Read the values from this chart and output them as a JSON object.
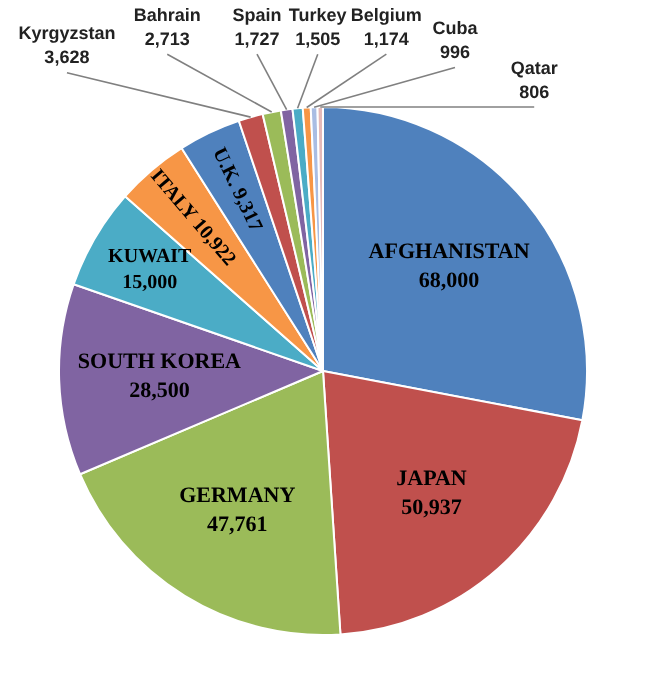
{
  "chart_data": {
    "type": "pie",
    "categories": [
      "AFGHANISTAN",
      "JAPAN",
      "GERMANY",
      "SOUTH KOREA",
      "KUWAIT",
      "ITALY",
      "U.K.",
      "Kyrgyzstan",
      "Bahrain",
      "Spain",
      "Turkey",
      "Belgium",
      "Cuba",
      "Qatar"
    ],
    "values": [
      68000,
      50937,
      47761,
      28500,
      15000,
      10922,
      9317,
      3628,
      2713,
      1727,
      1505,
      1174,
      996,
      806
    ],
    "value_labels": [
      "68,000",
      "50,937",
      "47,761",
      "28,500",
      "15,000",
      "10,922",
      "9,317",
      "3,628",
      "2,713",
      "1,727",
      "1,505",
      "1,174",
      "996",
      "806"
    ],
    "colors": [
      "#4f81bd",
      "#c0504d",
      "#9bbb59",
      "#8064a2",
      "#4bacc6",
      "#f79646",
      "#4f81bd",
      "#c0504d",
      "#9bbb59",
      "#8064a2",
      "#4bacc6",
      "#f79646",
      "#a9bde3",
      "#e6b9b8"
    ]
  }
}
